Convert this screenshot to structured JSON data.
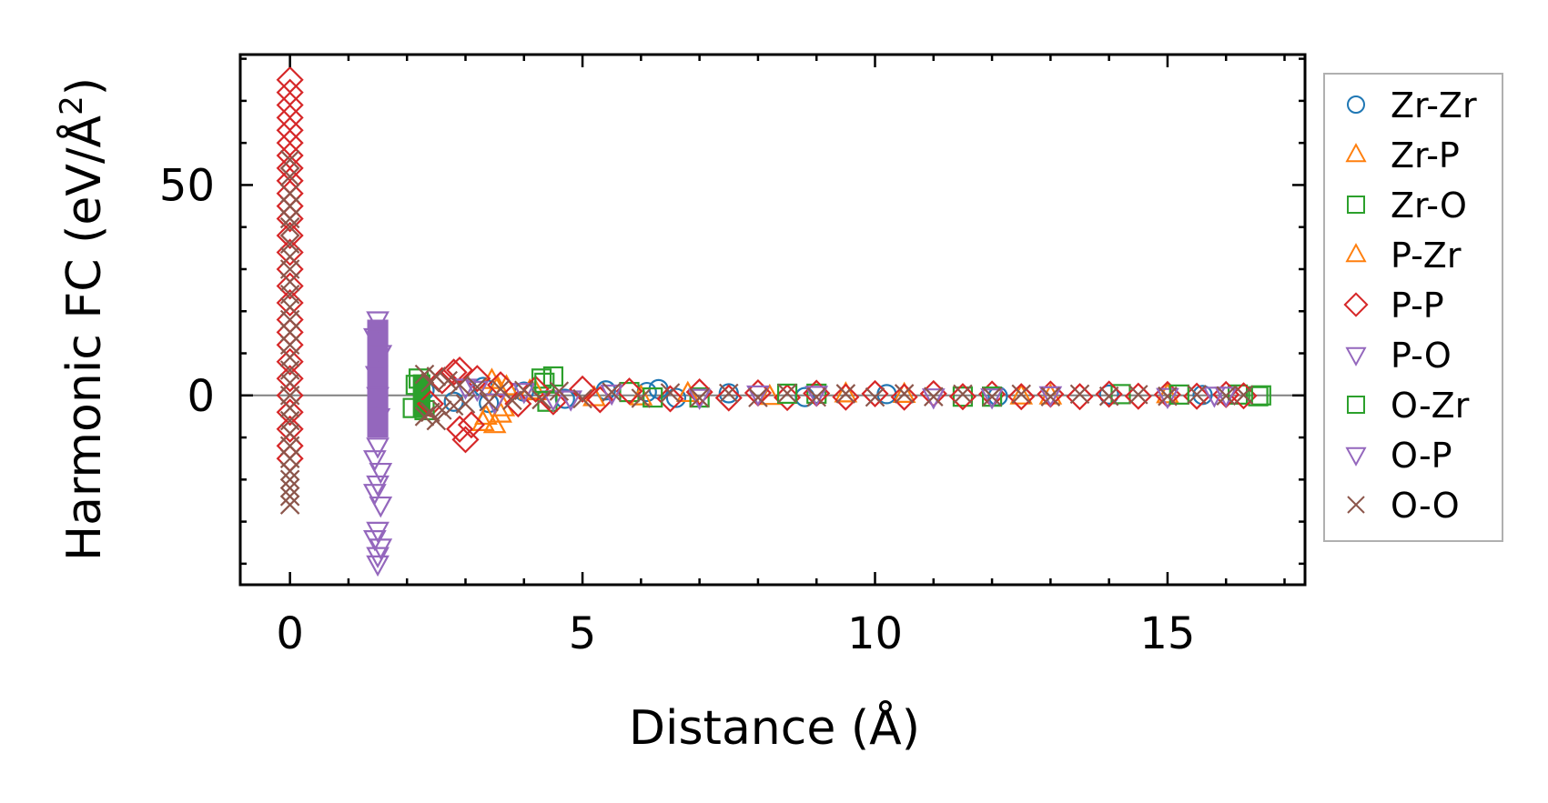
{
  "chart_data": {
    "type": "scatter",
    "title": "",
    "xlabel": "Distance (Å)",
    "ylabel_main": "Harmonic FC (eV/Å",
    "ylabel_sup": "2",
    "ylabel_close": ")",
    "xlim": [
      -0.85,
      17.35
    ],
    "ylim": [
      -45,
      81
    ],
    "xticks": [
      0,
      5,
      10,
      15
    ],
    "xtick_labels": [
      "0",
      "5",
      "10",
      "15"
    ],
    "yticks": [
      0,
      50
    ],
    "ytick_labels": [
      "0",
      "50"
    ],
    "x_minor_step": 1,
    "y_minor_step": 10,
    "zero_line": true,
    "grid": false,
    "legend_position": "outside-right",
    "series": [
      {
        "name": "Zr-Zr",
        "marker": "circle",
        "color": "#1f77b4",
        "filled_zone": [],
        "points": [
          [
            2.3,
            1.2
          ],
          [
            2.8,
            -1.5
          ],
          [
            3.3,
            2.0
          ],
          [
            3.4,
            -1.8
          ],
          [
            4.0,
            0.9
          ],
          [
            4.7,
            -0.8
          ],
          [
            5.4,
            1.2
          ],
          [
            6.1,
            0.8
          ],
          [
            6.3,
            1.5
          ],
          [
            6.6,
            -0.6
          ],
          [
            7.5,
            0.5
          ],
          [
            8.8,
            -0.4
          ],
          [
            10.2,
            0.3
          ],
          [
            12.1,
            -0.2
          ],
          [
            14.0,
            0.2
          ],
          [
            15.6,
            0.1
          ]
        ]
      },
      {
        "name": "Zr-P",
        "marker": "triangle-up",
        "color": "#ff7f0e",
        "filled_zone": [],
        "points": [
          [
            3.3,
            -6.5
          ],
          [
            3.45,
            3.5
          ],
          [
            3.5,
            -7.0
          ],
          [
            3.6,
            -4.5
          ],
          [
            3.7,
            2.0
          ],
          [
            4.1,
            1.0
          ],
          [
            5.2,
            -0.6
          ],
          [
            6.8,
            0.4
          ],
          [
            8.2,
            -0.3
          ],
          [
            10.5,
            0.2
          ],
          [
            13.0,
            -0.2
          ],
          [
            15.0,
            0.1
          ]
        ]
      },
      {
        "name": "Zr-O",
        "marker": "square",
        "color": "#2ca02c",
        "filled_zone": [
          2.1,
          2.4,
          -5,
          5
        ],
        "points": [
          [
            2.1,
            -3.0
          ],
          [
            2.2,
            4.0
          ],
          [
            4.3,
            4.0
          ],
          [
            4.5,
            4.5
          ],
          [
            4.4,
            -1.5
          ],
          [
            5.8,
            0.8
          ],
          [
            7.0,
            -0.5
          ],
          [
            9.0,
            0.4
          ],
          [
            11.5,
            -0.3
          ],
          [
            14.2,
            0.3
          ],
          [
            16.2,
            0.2
          ],
          [
            16.55,
            -0.2
          ]
        ]
      },
      {
        "name": "P-Zr",
        "marker": "triangle-up",
        "color": "#ff7f0e",
        "filled_zone": [],
        "points": [
          [
            3.35,
            -5.0
          ],
          [
            3.55,
            1.8
          ],
          [
            3.65,
            -3.0
          ],
          [
            4.2,
            0.8
          ],
          [
            6.0,
            -0.4
          ],
          [
            9.5,
            0.3
          ],
          [
            12.5,
            -0.2
          ]
        ]
      },
      {
        "name": "P-P",
        "marker": "diamond",
        "color": "#d62728",
        "filled_zone": [],
        "points": [
          [
            0,
            75
          ],
          [
            0,
            72
          ],
          [
            0,
            69
          ],
          [
            0,
            66
          ],
          [
            0,
            63
          ],
          [
            0,
            60
          ],
          [
            0,
            57
          ],
          [
            0,
            54
          ],
          [
            0,
            51
          ],
          [
            0,
            48
          ],
          [
            0,
            45
          ],
          [
            0,
            42
          ],
          [
            0,
            38
          ],
          [
            0,
            34
          ],
          [
            0,
            30
          ],
          [
            0,
            26
          ],
          [
            0,
            22
          ],
          [
            0,
            18
          ],
          [
            0,
            15
          ],
          [
            0,
            12
          ],
          [
            0,
            8
          ],
          [
            0,
            4
          ],
          [
            0,
            0
          ],
          [
            0,
            -4
          ],
          [
            0,
            -8
          ],
          [
            0,
            -12
          ],
          [
            0,
            -15
          ],
          [
            2.4,
            -2.0
          ],
          [
            2.6,
            3.5
          ],
          [
            2.8,
            5.5
          ],
          [
            2.9,
            6.0
          ],
          [
            2.9,
            -8.0
          ],
          [
            3.0,
            -10.5
          ],
          [
            3.1,
            -7.0
          ],
          [
            3.2,
            4.0
          ],
          [
            3.6,
            2.5
          ],
          [
            3.9,
            -2.0
          ],
          [
            4.2,
            1.5
          ],
          [
            4.5,
            -1.5
          ],
          [
            5.0,
            1.5
          ],
          [
            5.3,
            -1.0
          ],
          [
            5.8,
            1.0
          ],
          [
            6.5,
            -0.8
          ],
          [
            7.0,
            0.8
          ],
          [
            7.5,
            -0.6
          ],
          [
            8.0,
            0.6
          ],
          [
            8.5,
            -0.5
          ],
          [
            9.0,
            0.5
          ],
          [
            9.5,
            -0.4
          ],
          [
            10.0,
            0.4
          ],
          [
            10.5,
            -0.4
          ],
          [
            11.0,
            0.4
          ],
          [
            11.5,
            -0.3
          ],
          [
            12.0,
            0.3
          ],
          [
            12.5,
            -0.3
          ],
          [
            13.0,
            0.3
          ],
          [
            13.5,
            -0.3
          ],
          [
            14.0,
            0.3
          ],
          [
            14.5,
            -0.2
          ],
          [
            15.0,
            0.2
          ],
          [
            15.5,
            -0.2
          ],
          [
            16.0,
            0.2
          ],
          [
            16.3,
            -0.1
          ]
        ]
      },
      {
        "name": "P-O",
        "marker": "triangle-down",
        "color": "#9467bd",
        "filled_zone": [
          1.32,
          1.68,
          -10,
          18
        ],
        "points": [
          [
            1.5,
            18
          ],
          [
            1.45,
            14
          ],
          [
            1.55,
            10
          ],
          [
            1.5,
            -12
          ],
          [
            1.45,
            -15
          ],
          [
            1.55,
            -18
          ],
          [
            1.5,
            -21
          ],
          [
            1.45,
            -23
          ],
          [
            1.55,
            -26
          ],
          [
            1.5,
            -32
          ],
          [
            1.45,
            -34
          ],
          [
            1.55,
            -36
          ],
          [
            1.5,
            -38
          ],
          [
            1.5,
            -40
          ],
          [
            3.0,
            2.0
          ],
          [
            3.5,
            -1.5
          ],
          [
            4.0,
            1.0
          ],
          [
            4.5,
            -0.8
          ],
          [
            5.5,
            0.6
          ],
          [
            7.0,
            -0.4
          ],
          [
            9.0,
            0.3
          ],
          [
            11.0,
            -0.3
          ],
          [
            13.0,
            0.2
          ],
          [
            15.0,
            -0.2
          ],
          [
            16.0,
            0.1
          ]
        ]
      },
      {
        "name": "O-Zr",
        "marker": "square",
        "color": "#2ca02c",
        "filled_zone": [],
        "points": [
          [
            2.15,
            2.5
          ],
          [
            2.3,
            -3.5
          ],
          [
            4.35,
            3.0
          ],
          [
            6.2,
            -0.5
          ],
          [
            8.5,
            0.4
          ],
          [
            12.0,
            -0.3
          ],
          [
            15.2,
            0.2
          ],
          [
            16.6,
            0
          ]
        ]
      },
      {
        "name": "O-P",
        "marker": "triangle-down",
        "color": "#9467bd",
        "filled_zone": [],
        "points": [
          [
            1.48,
            5
          ],
          [
            1.52,
            -5
          ],
          [
            1.5,
            0
          ],
          [
            3.2,
            1.5
          ],
          [
            4.8,
            -0.8
          ],
          [
            8.0,
            0.4
          ],
          [
            12.0,
            -0.3
          ],
          [
            15.8,
            0.1
          ]
        ]
      },
      {
        "name": "O-O",
        "marker": "x",
        "color": "#8c564b",
        "filled_zone": [],
        "points": [
          [
            0,
            56
          ],
          [
            0,
            52
          ],
          [
            0,
            48
          ],
          [
            0,
            45
          ],
          [
            0,
            42
          ],
          [
            0,
            40
          ],
          [
            0,
            36
          ],
          [
            0,
            33
          ],
          [
            0,
            30
          ],
          [
            0,
            27
          ],
          [
            0,
            24
          ],
          [
            0,
            21
          ],
          [
            0,
            18
          ],
          [
            0,
            15
          ],
          [
            0,
            12
          ],
          [
            0,
            9
          ],
          [
            0,
            6
          ],
          [
            0,
            3
          ],
          [
            0,
            0
          ],
          [
            0,
            -3
          ],
          [
            0,
            -6
          ],
          [
            0,
            -9
          ],
          [
            0,
            -12
          ],
          [
            0,
            -15
          ],
          [
            0,
            -18
          ],
          [
            0,
            -20
          ],
          [
            0,
            -22
          ],
          [
            0,
            -24
          ],
          [
            0,
            -26
          ],
          [
            2.3,
            5.0
          ],
          [
            2.3,
            -5.0
          ],
          [
            2.4,
            3.0
          ],
          [
            2.4,
            -4.0
          ],
          [
            2.5,
            4.5
          ],
          [
            2.5,
            -6.0
          ],
          [
            2.6,
            -3.5
          ],
          [
            2.7,
            3.5
          ],
          [
            2.8,
            -2.5
          ],
          [
            2.9,
            2.5
          ],
          [
            3.0,
            -2.0
          ],
          [
            3.2,
            2.0
          ],
          [
            3.4,
            -1.5
          ],
          [
            3.6,
            1.5
          ],
          [
            3.8,
            -1.2
          ],
          [
            4.0,
            1.2
          ],
          [
            4.3,
            -1.0
          ],
          [
            4.6,
            1.0
          ],
          [
            5.0,
            -0.8
          ],
          [
            5.5,
            0.8
          ],
          [
            6.0,
            -0.7
          ],
          [
            6.5,
            0.6
          ],
          [
            7.0,
            -0.6
          ],
          [
            7.5,
            0.5
          ],
          [
            8.0,
            -0.5
          ],
          [
            8.5,
            0.5
          ],
          [
            9.0,
            -0.4
          ],
          [
            9.5,
            0.4
          ],
          [
            10.0,
            -0.4
          ],
          [
            10.5,
            0.4
          ],
          [
            11.0,
            -0.3
          ],
          [
            11.5,
            0.3
          ],
          [
            12.0,
            -0.3
          ],
          [
            12.5,
            0.3
          ],
          [
            13.0,
            -0.3
          ],
          [
            13.5,
            0.3
          ],
          [
            14.0,
            -0.2
          ],
          [
            14.5,
            0.2
          ],
          [
            15.0,
            -0.2
          ],
          [
            15.5,
            0.2
          ],
          [
            16.0,
            -0.1
          ],
          [
            16.3,
            0.1
          ]
        ]
      }
    ]
  }
}
